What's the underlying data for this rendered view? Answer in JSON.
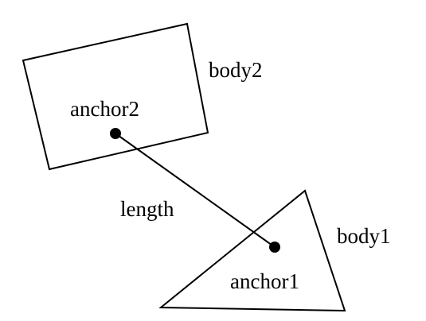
{
  "labels": {
    "body2": "body2",
    "anchor2": "anchor2",
    "length": "length",
    "body1": "body1",
    "anchor1": "anchor1"
  },
  "colors": {
    "stroke": "#000000",
    "background": "#ffffff"
  }
}
